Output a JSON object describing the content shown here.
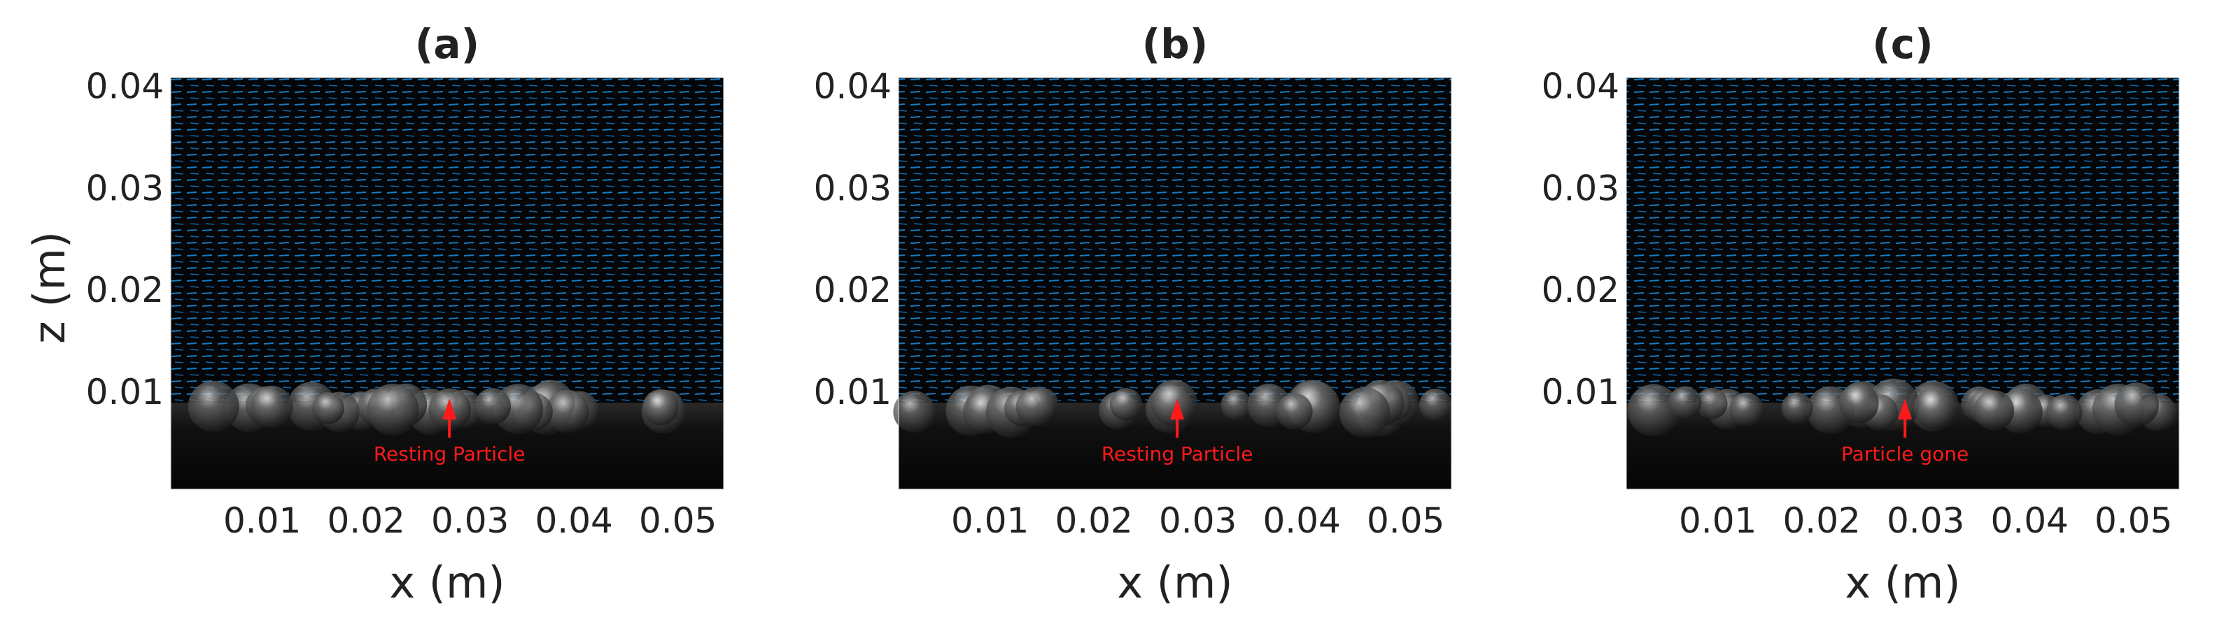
{
  "chart_data": [
    {
      "type": "image",
      "title": "(a)",
      "xlabel": "x (m)",
      "ylabel": "z (m)",
      "annotation": "Resting Particle",
      "xlim": [
        0.0012,
        0.0544
      ],
      "ylim": [
        0.0004,
        0.0408
      ],
      "xticks": [
        0.01,
        0.02,
        0.03,
        0.04,
        0.05
      ],
      "yticks": [
        0.01,
        0.02,
        0.03,
        0.04
      ]
    },
    {
      "type": "image",
      "title": "(b)",
      "xlabel": "x (m)",
      "annotation": "Resting Particle",
      "xlim": [
        0.0012,
        0.0544
      ],
      "ylim": [
        0.0004,
        0.0408
      ],
      "xticks": [
        0.01,
        0.02,
        0.03,
        0.04,
        0.05
      ],
      "yticks": [
        0.01,
        0.02,
        0.03,
        0.04
      ]
    },
    {
      "type": "image",
      "title": "(c)",
      "xlabel": "x (m)",
      "annotation": "Particle gone",
      "xlim": [
        0.0012,
        0.0544
      ],
      "ylim": [
        0.0004,
        0.0408
      ],
      "xticks": [
        0.01,
        0.02,
        0.03,
        0.04,
        0.05
      ],
      "yticks": [
        0.01,
        0.02,
        0.03,
        0.04
      ]
    }
  ]
}
